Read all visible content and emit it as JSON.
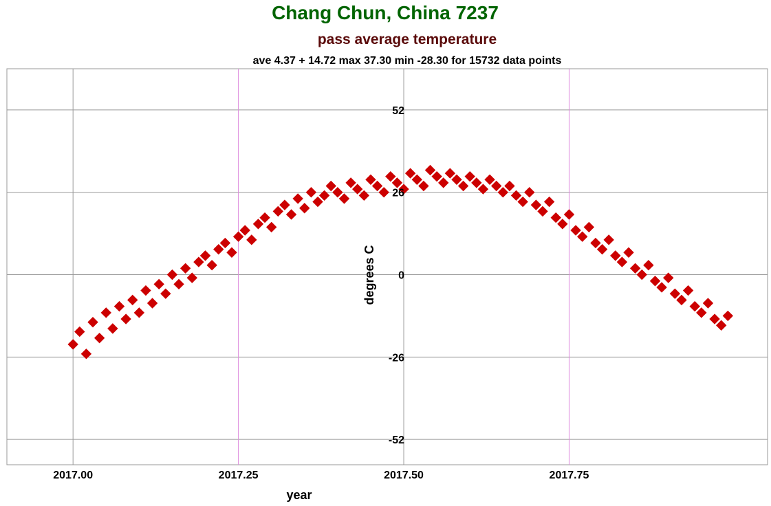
{
  "chart_data": {
    "type": "scatter",
    "title": "Chang Chun, China 7237",
    "subtitle": "pass average temperature",
    "stats_line": "ave 4.37 + 14.72 max 37.30 min -28.30 for 15732 data points",
    "xlabel": "year",
    "ylabel": "degrees C",
    "xlim": [
      2016.9,
      2018.05
    ],
    "ylim": [
      -60,
      65
    ],
    "x_ticks": [
      {
        "value": 2017.0,
        "label": "2017.00"
      },
      {
        "value": 2017.25,
        "label": "2017.25"
      },
      {
        "value": 2017.5,
        "label": "2017.50"
      },
      {
        "value": 2017.75,
        "label": "2017.75"
      }
    ],
    "y_ticks": [
      {
        "value": 52,
        "label": "52"
      },
      {
        "value": 26,
        "label": "26"
      },
      {
        "value": 0,
        "label": "0"
      },
      {
        "value": -26,
        "label": "-26"
      },
      {
        "value": -52,
        "label": "-52"
      }
    ],
    "grid": true,
    "colors": {
      "title": "#006400",
      "subtitle": "#5a0a0a",
      "points": "#cc0000",
      "grid": "#999999",
      "grid_alt": "#dd88dd"
    },
    "series": [
      {
        "values": [
          [
            2017.0,
            -22
          ],
          [
            2017.01,
            -18
          ],
          [
            2017.02,
            -25
          ],
          [
            2017.03,
            -15
          ],
          [
            2017.04,
            -20
          ],
          [
            2017.05,
            -12
          ],
          [
            2017.06,
            -17
          ],
          [
            2017.07,
            -10
          ],
          [
            2017.08,
            -14
          ],
          [
            2017.09,
            -8
          ],
          [
            2017.1,
            -12
          ],
          [
            2017.11,
            -5
          ],
          [
            2017.12,
            -9
          ],
          [
            2017.13,
            -3
          ],
          [
            2017.14,
            -6
          ],
          [
            2017.15,
            0
          ],
          [
            2017.16,
            -3
          ],
          [
            2017.17,
            2
          ],
          [
            2017.18,
            -1
          ],
          [
            2017.19,
            4
          ],
          [
            2017.2,
            6
          ],
          [
            2017.21,
            3
          ],
          [
            2017.22,
            8
          ],
          [
            2017.23,
            10
          ],
          [
            2017.24,
            7
          ],
          [
            2017.25,
            12
          ],
          [
            2017.26,
            14
          ],
          [
            2017.27,
            11
          ],
          [
            2017.28,
            16
          ],
          [
            2017.29,
            18
          ],
          [
            2017.3,
            15
          ],
          [
            2017.31,
            20
          ],
          [
            2017.32,
            22
          ],
          [
            2017.33,
            19
          ],
          [
            2017.34,
            24
          ],
          [
            2017.35,
            21
          ],
          [
            2017.36,
            26
          ],
          [
            2017.37,
            23
          ],
          [
            2017.38,
            25
          ],
          [
            2017.39,
            28
          ],
          [
            2017.4,
            26
          ],
          [
            2017.41,
            24
          ],
          [
            2017.42,
            29
          ],
          [
            2017.43,
            27
          ],
          [
            2017.44,
            25
          ],
          [
            2017.45,
            30
          ],
          [
            2017.46,
            28
          ],
          [
            2017.47,
            26
          ],
          [
            2017.48,
            31
          ],
          [
            2017.49,
            29
          ],
          [
            2017.5,
            27
          ],
          [
            2017.51,
            32
          ],
          [
            2017.52,
            30
          ],
          [
            2017.53,
            28
          ],
          [
            2017.54,
            33
          ],
          [
            2017.55,
            31
          ],
          [
            2017.56,
            29
          ],
          [
            2017.57,
            32
          ],
          [
            2017.58,
            30
          ],
          [
            2017.59,
            28
          ],
          [
            2017.6,
            31
          ],
          [
            2017.61,
            29
          ],
          [
            2017.62,
            27
          ],
          [
            2017.63,
            30
          ],
          [
            2017.64,
            28
          ],
          [
            2017.65,
            26
          ],
          [
            2017.66,
            28
          ],
          [
            2017.67,
            25
          ],
          [
            2017.68,
            23
          ],
          [
            2017.69,
            26
          ],
          [
            2017.7,
            22
          ],
          [
            2017.71,
            20
          ],
          [
            2017.72,
            23
          ],
          [
            2017.73,
            18
          ],
          [
            2017.74,
            16
          ],
          [
            2017.75,
            19
          ],
          [
            2017.76,
            14
          ],
          [
            2017.77,
            12
          ],
          [
            2017.78,
            15
          ],
          [
            2017.79,
            10
          ],
          [
            2017.8,
            8
          ],
          [
            2017.81,
            11
          ],
          [
            2017.82,
            6
          ],
          [
            2017.83,
            4
          ],
          [
            2017.84,
            7
          ],
          [
            2017.85,
            2
          ],
          [
            2017.86,
            0
          ],
          [
            2017.87,
            3
          ],
          [
            2017.88,
            -2
          ],
          [
            2017.89,
            -4
          ],
          [
            2017.9,
            -1
          ],
          [
            2017.91,
            -6
          ],
          [
            2017.92,
            -8
          ],
          [
            2017.93,
            -5
          ],
          [
            2017.94,
            -10
          ],
          [
            2017.95,
            -12
          ],
          [
            2017.96,
            -9
          ],
          [
            2017.97,
            -14
          ],
          [
            2017.98,
            -16
          ],
          [
            2017.99,
            -13
          ]
        ]
      }
    ]
  }
}
